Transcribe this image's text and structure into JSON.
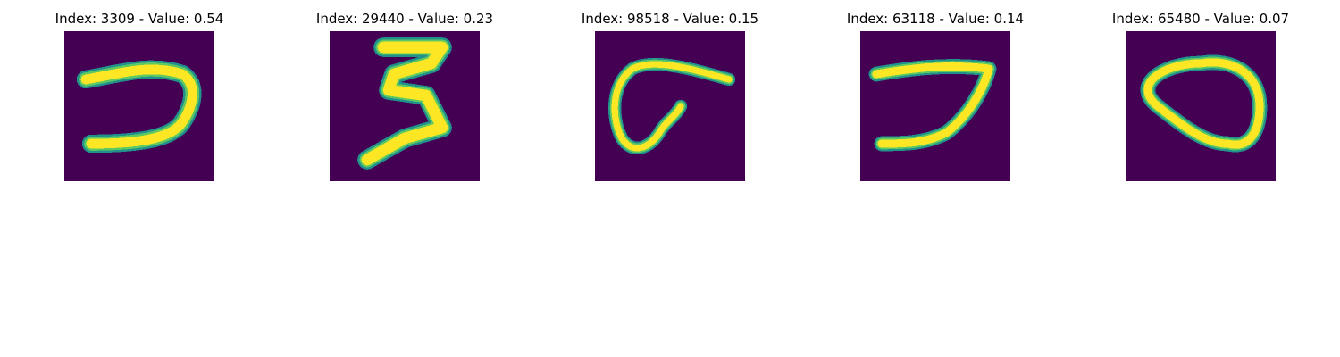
{
  "colors": {
    "background": "#440154",
    "stroke_low": "#21918c",
    "stroke_mid": "#5ec962",
    "stroke_high": "#fde725"
  },
  "panels": [
    {
      "title": "Index: 3309 - Value: 0.54",
      "depicts": "digit-like stroke resembling a reversed C / hook"
    },
    {
      "title": "Index: 29440 - Value: 0.23",
      "depicts": "digit 3"
    },
    {
      "title": "Index: 98518 - Value: 0.15",
      "depicts": "curled stroke resembling a 6 / G"
    },
    {
      "title": "Index: 63118 - Value: 0.14",
      "depicts": "digit 7 with long base stroke"
    },
    {
      "title": "Index: 65480 - Value: 0.07",
      "depicts": "closed loop resembling a 0"
    }
  ]
}
